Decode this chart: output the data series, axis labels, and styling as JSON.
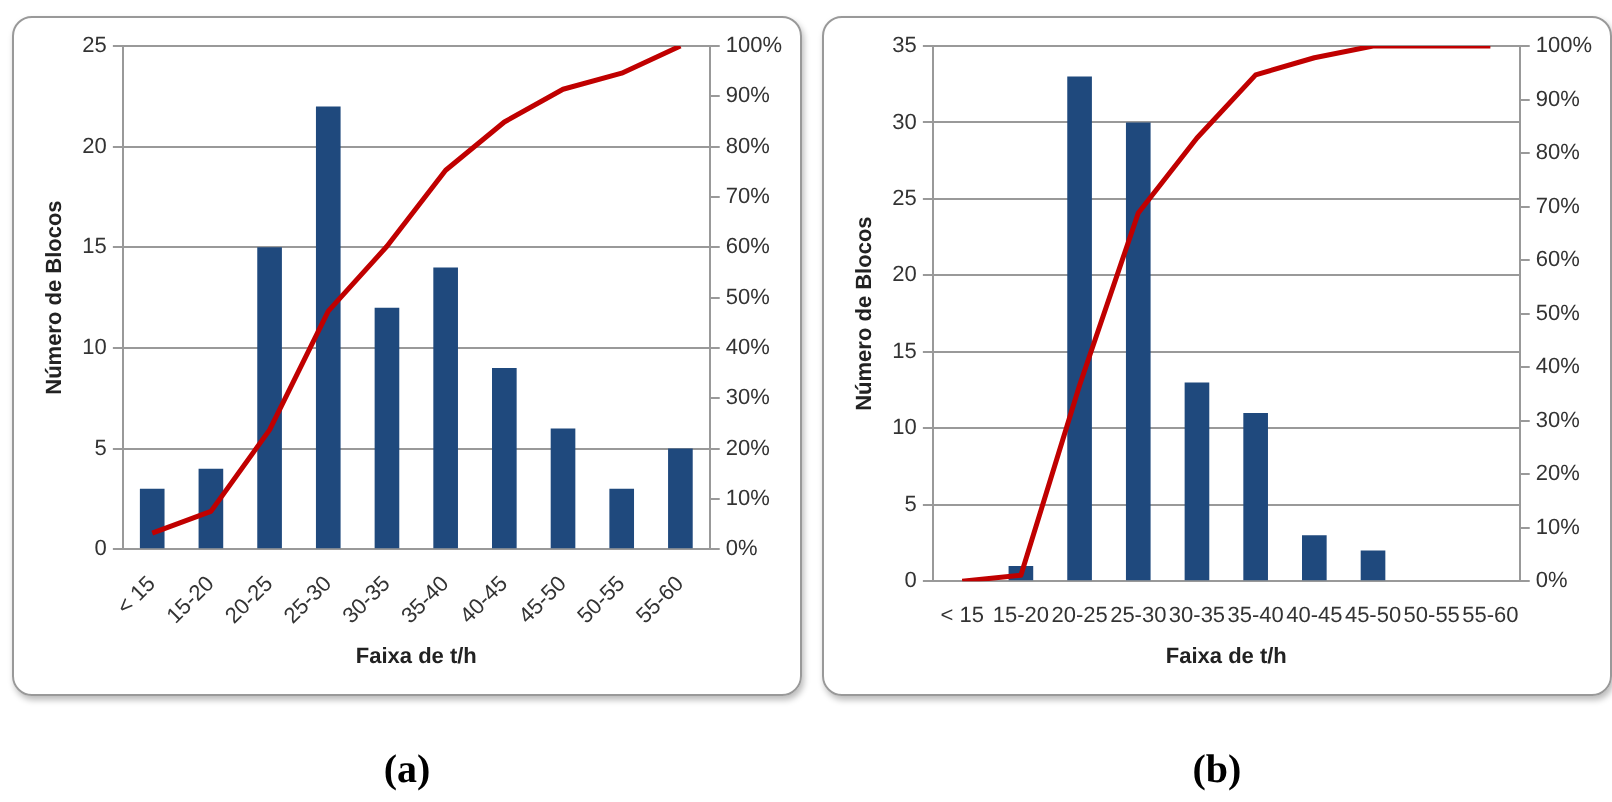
{
  "chart_data": [
    {
      "type": "bar",
      "xlabel": "Faixa de t/h",
      "ylabel": "Número de Blocos",
      "categories": [
        "< 15",
        "15-20",
        "20-25",
        "25-30",
        "30-35",
        "35-40",
        "40-45",
        "45-50",
        "50-55",
        "55-60"
      ],
      "series": [
        {
          "color": "#1f497d",
          "values": [
            3,
            4,
            15,
            22,
            12,
            14,
            9,
            6,
            3,
            5
          ]
        },
        {
          "type": "line",
          "axis": "y2",
          "color": "#c00000",
          "values": [
            3.2,
            7.5,
            23.7,
            47.3,
            60.2,
            75.3,
            84.9,
            91.4,
            94.6,
            100
          ]
        }
      ],
      "ylim": [
        0,
        25
      ],
      "yticks": [
        0,
        5,
        10,
        15,
        20,
        25
      ],
      "y2lim": [
        0,
        100
      ],
      "y2ticks": [
        {
          "value": 0,
          "label": "0%"
        },
        {
          "value": 10,
          "label": "10%"
        },
        {
          "value": 20,
          "label": "20%"
        },
        {
          "value": 30,
          "label": "30%"
        },
        {
          "value": 40,
          "label": "40%"
        },
        {
          "value": 50,
          "label": "50%"
        },
        {
          "value": 60,
          "label": "60%"
        },
        {
          "value": 70,
          "label": "70%"
        },
        {
          "value": 80,
          "label": "80%"
        },
        {
          "value": 90,
          "label": "90%"
        },
        {
          "value": 100,
          "label": "100%"
        }
      ],
      "grid": "y",
      "legend": false,
      "marker": "none",
      "annotations": [
        "(a)"
      ]
    },
    {
      "type": "bar",
      "xlabel": "Faixa de t/h",
      "ylabel": "Número de Blocos",
      "categories": [
        "< 15",
        "15-20",
        "20-25",
        "25-30",
        "30-35",
        "35-40",
        "40-45",
        "45-50",
        "50-55",
        "55-60"
      ],
      "series": [
        {
          "color": "#1f497d",
          "values": [
            0,
            1,
            33,
            30,
            13,
            11,
            3,
            2,
            0,
            0
          ]
        },
        {
          "type": "line",
          "axis": "y2",
          "color": "#c00000",
          "values": [
            0,
            1.1,
            36.6,
            68.8,
            82.8,
            94.6,
            97.8,
            100,
            100,
            100
          ]
        }
      ],
      "ylim": [
        0,
        35
      ],
      "yticks": [
        0,
        5,
        10,
        15,
        20,
        25,
        30,
        35
      ],
      "y2lim": [
        0,
        100
      ],
      "y2ticks": [
        {
          "value": 0,
          "label": "0%"
        },
        {
          "value": 10,
          "label": "10%"
        },
        {
          "value": 20,
          "label": "20%"
        },
        {
          "value": 30,
          "label": "30%"
        },
        {
          "value": 40,
          "label": "40%"
        },
        {
          "value": 50,
          "label": "50%"
        },
        {
          "value": 60,
          "label": "60%"
        },
        {
          "value": 70,
          "label": "70%"
        },
        {
          "value": 80,
          "label": "80%"
        },
        {
          "value": 90,
          "label": "90%"
        },
        {
          "value": 100,
          "label": "100%"
        }
      ],
      "grid": "y",
      "legend": false,
      "marker": "none",
      "annotations": [
        "(b)"
      ]
    }
  ]
}
